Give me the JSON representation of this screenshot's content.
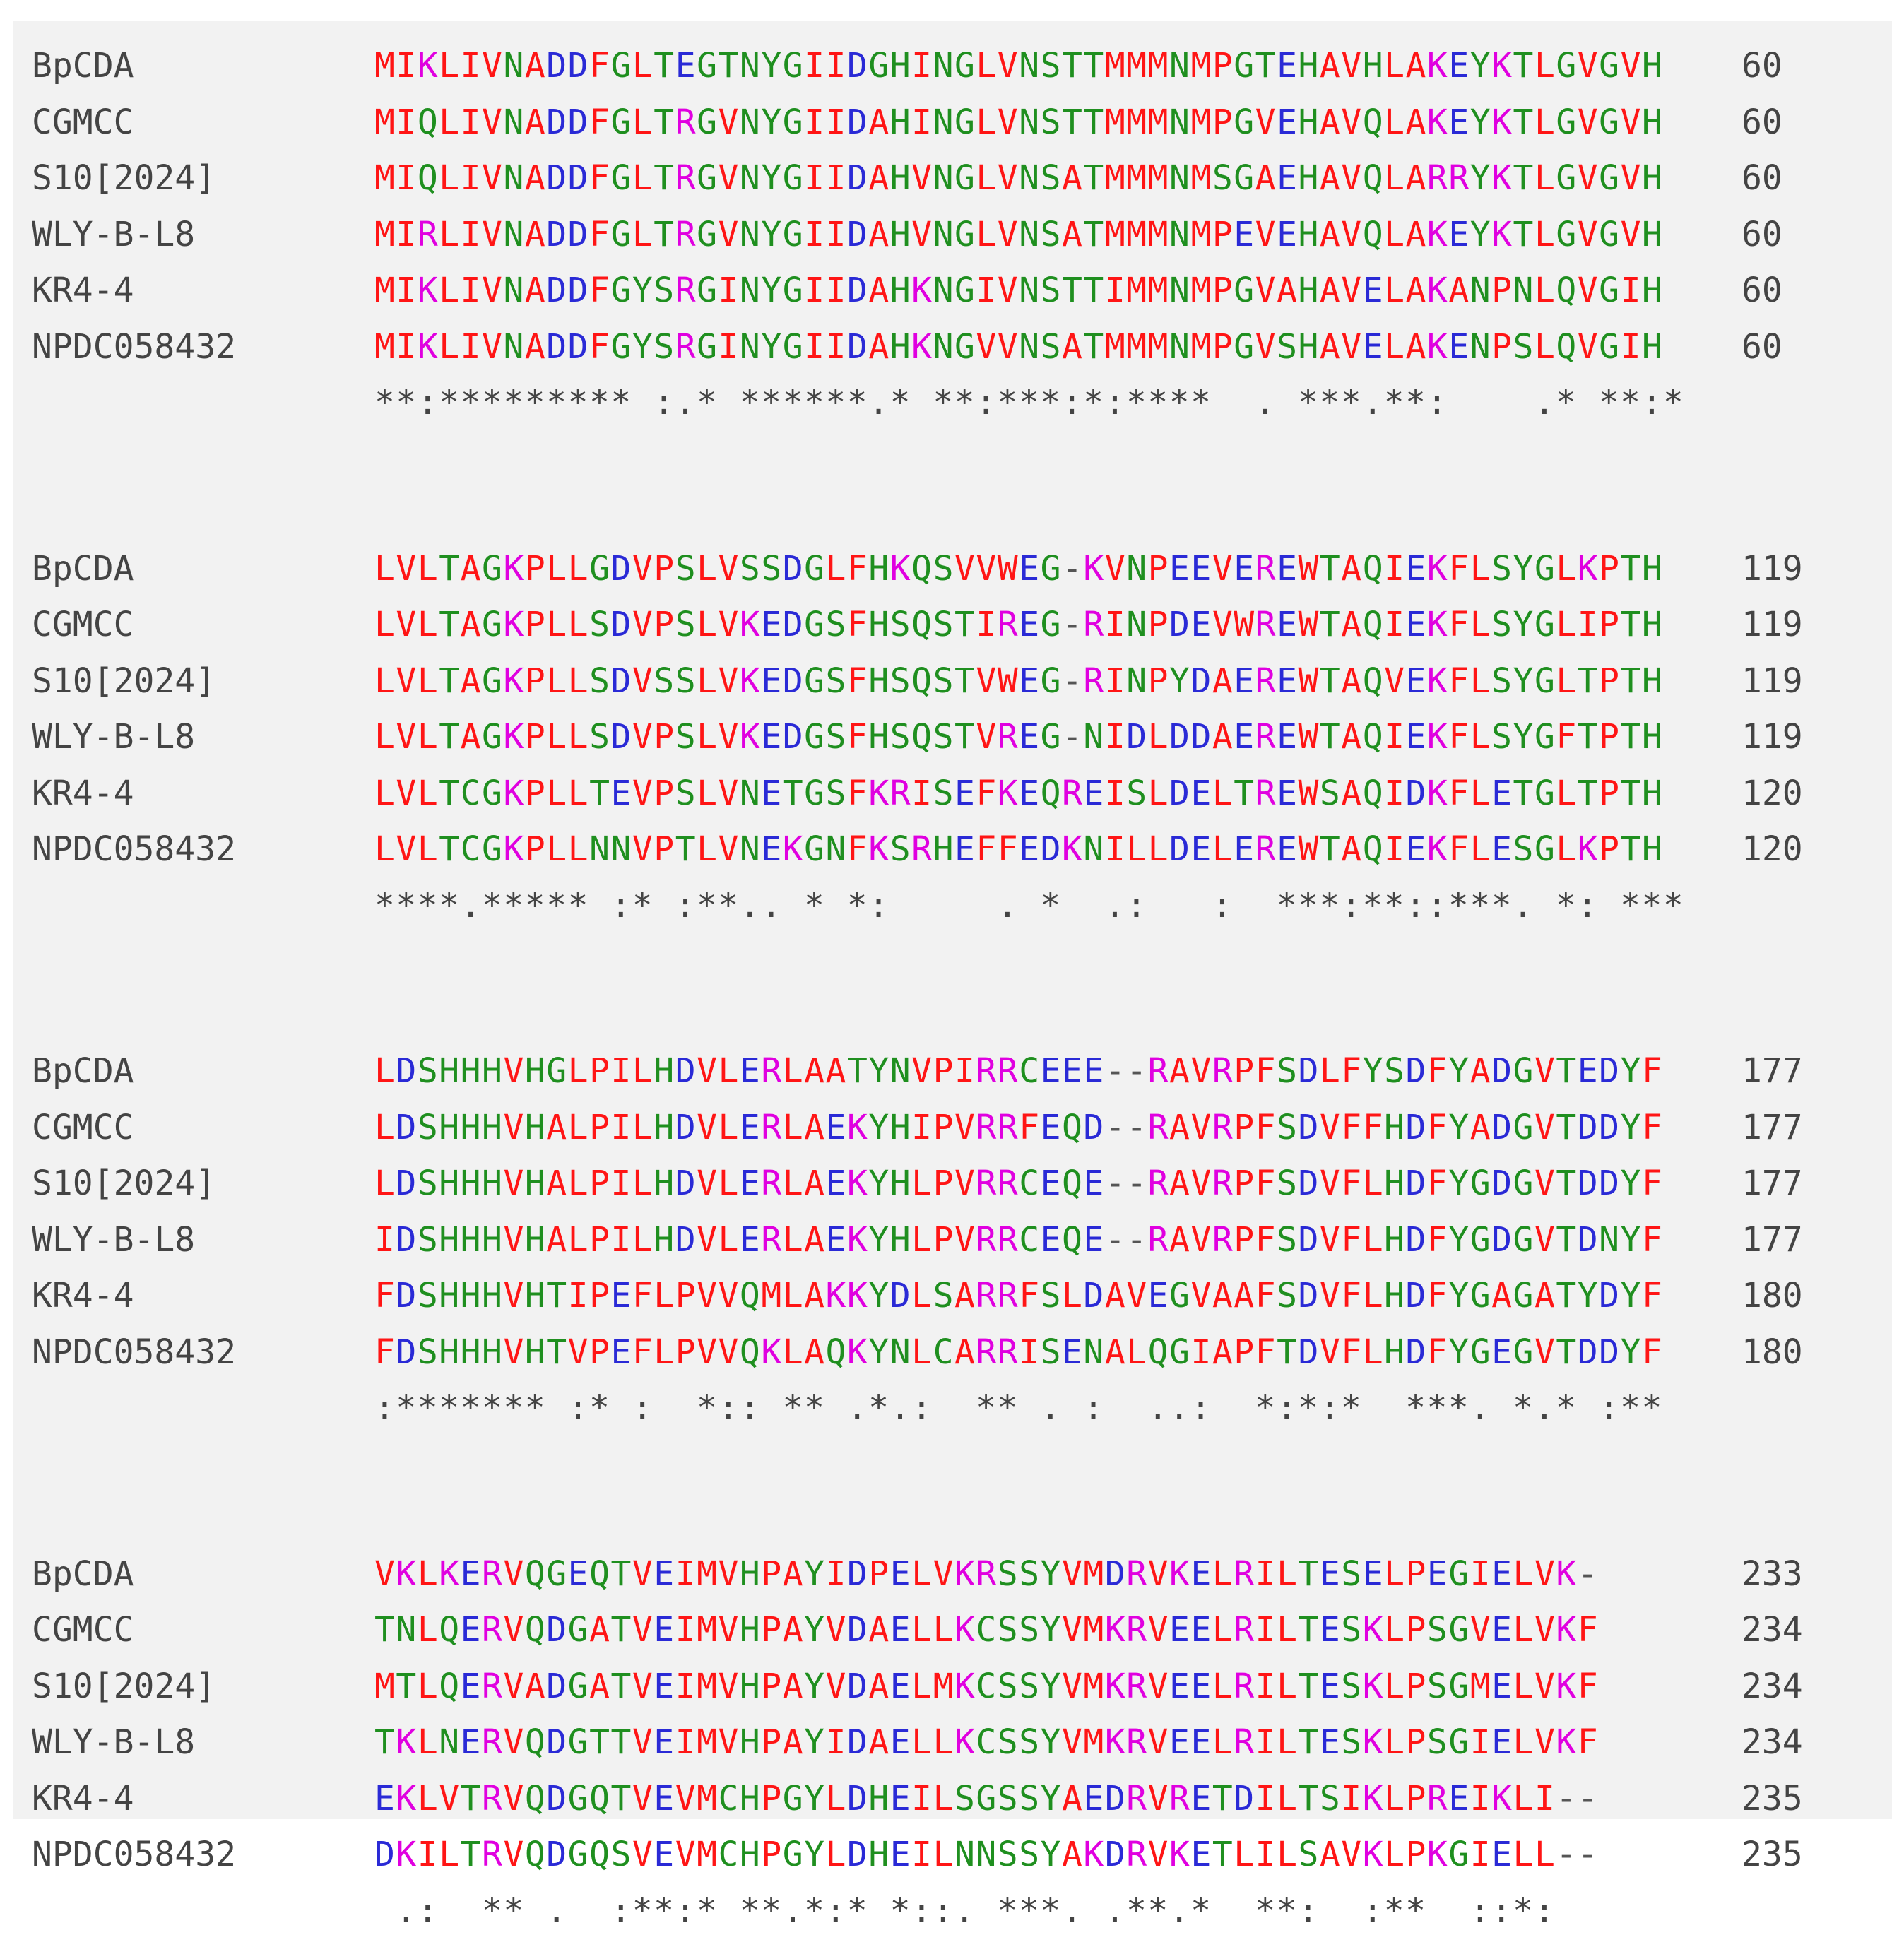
{
  "colors": {
    "hydrophobic": "#ff1515",
    "acidic": "#2a2ad6",
    "basic": "#e000e0",
    "polar": "#1f8f1f",
    "gap": "#555555",
    "background": "#f2f2f2"
  },
  "blocks": [
    {
      "rows": [
        {
          "name": "BpCDA",
          "seq": "MIKLIVNADDFGLTEGTNYGIIDGHINGLVNSTTMMMNMPGTEHAVHLAKEYKTLGVGVH",
          "num": "60"
        },
        {
          "name": "CGMCC",
          "seq": "MIQLIVNADDFGLTRGVNYGIIDAHINGLVNSTTMMMNMPGVEHAVQLAKEYKTLGVGVH",
          "num": "60"
        },
        {
          "name": "S10[2024]",
          "seq": "MIQLIVNADDFGLTRGVNYGIIDAHVNGLVNSATMMMNMSGAEHAVQLARRYKTLGVGVH",
          "num": "60"
        },
        {
          "name": "WLY-B-L8",
          "seq": "MIRLIVNADDFGLTRGVNYGIIDAHVNGLVNSATMMMNMPEVEHAVQLAKEYKTLGVGVH",
          "num": "60"
        },
        {
          "name": "KR4-4",
          "seq": "MIKLIVNADDFGYSRGINYGIIDAHKNGIVNSTTIMMNMPGVAHAVELAKANPNLQVGIH",
          "num": "60"
        },
        {
          "name": "NPDC058432",
          "seq": "MIKLIVNADDFGYSRGINYGIIDAHKNGVVNSATMMMNMPGVSHAVELAKENPSLQVGIH",
          "num": "60"
        }
      ],
      "consensus": "**:********* :.* ******.* **:***:*:****  . ***.**:    .* **:*"
    },
    {
      "rows": [
        {
          "name": "BpCDA",
          "seq": "LVLTAGKPLLGDVPSLVSSDGLFHKQSVVWEG-KVNPEEVEREWTAQIEKFLSYGLKPTH",
          "num": "119"
        },
        {
          "name": "CGMCC",
          "seq": "LVLTAGKPLLSDVPSLVKEDGSFHSQSTIREG-RINPDEVWREWTAQIEKFLSYGLIPTH",
          "num": "119"
        },
        {
          "name": "S10[2024]",
          "seq": "LVLTAGKPLLSDVSSLVKEDGSFHSQSTVWEG-RINPYDAEREWTAQVEKFLSYGLTPTH",
          "num": "119"
        },
        {
          "name": "WLY-B-L8",
          "seq": "LVLTAGKPLLSDVPSLVKEDGSFHSQSTVREG-NIDLDDAEREWTAQIEKFLSYGFTPTH",
          "num": "119"
        },
        {
          "name": "KR4-4",
          "seq": "LVLTCGKPLLTEVPSLVNETGSFKRISEFKEQREISLDELTREWSAQIDKFLETGLTPTH",
          "num": "120"
        },
        {
          "name": "NPDC058432",
          "seq": "LVLTCGKPLLNNVPTLVNEKGNFKSRHEFFEDKNILLDELEREWTAQIEKFLESGLKPTH",
          "num": "120"
        }
      ],
      "consensus": "****.***** :* :**.. * *:     . *  .:   :  ***:**::***. *: ***"
    },
    {
      "rows": [
        {
          "name": "BpCDA",
          "seq": "LDSHHHVHGLPILHDVLERLAATYNVPIRRCEEE--RAVRPFSDLFYSDFYADGVTEDYF",
          "num": "177"
        },
        {
          "name": "CGMCC",
          "seq": "LDSHHHVHALPILHDVLERLAEKYHIPVRRFEQD--RAVRPFSDVFFHDFYADGVTDDYF",
          "num": "177"
        },
        {
          "name": "S10[2024]",
          "seq": "LDSHHHVHALPILHDVLERLAEKYHLPVRRCEQE--RAVRPFSDVFLHDFYGDGVTDDYF",
          "num": "177"
        },
        {
          "name": "WLY-B-L8",
          "seq": "IDSHHHVHALPILHDVLERLAEKYHLPVRRCEQE--RAVRPFSDVFLHDFYGDGVTDNYF",
          "num": "177"
        },
        {
          "name": "KR4-4",
          "seq": "FDSHHHVHTIPEFLPVVQMLAKKYDLSARRFSLDAVEGVAAFSDVFLHDFYGAGATYDYF",
          "num": "180"
        },
        {
          "name": "NPDC058432",
          "seq": "FDSHHHVHTVPEFLPVVQKLAQKYNLCARRISENALQGIAPFTDVFLHDFYGEGVTDDYF",
          "num": "180"
        }
      ],
      "consensus": ":******* :* :  *:: ** .*.:  ** . :  ..:  *:*:*  ***. *.* :**"
    },
    {
      "rows": [
        {
          "name": "BpCDA",
          "seq": "VKLKERVQGEQTVEIMVHPAYIDPELVKRSSYVMDRVKELRILTESELPEGIELVK-",
          "num": "233"
        },
        {
          "name": "CGMCC",
          "seq": "TNLQERVQDGATVEIMVHPAYVDAELLKCSSYVMKRVEELRILTESKLPSGVELVKF",
          "num": "234"
        },
        {
          "name": "S10[2024]",
          "seq": "MTLQERVADGATVEIMVHPAYVDAELMKCSSYVMKRVEELRILTESKLPSGMELVKF",
          "num": "234"
        },
        {
          "name": "WLY-B-L8",
          "seq": "TKLNERVQDGTTVEIMVHPAYIDAELLKCSSYVMKRVEELRILTESKLPSGIELVKF",
          "num": "234"
        },
        {
          "name": "KR4-4",
          "seq": "EKLVTRVQDGQTVEVMCHPGYLDHEILSGSSYAEDRVRETDILTSIKLPREIKLI--",
          "num": "235"
        },
        {
          "name": "NPDC058432",
          "seq": "DKILTRVQDGQSVEVMCHPGYLDHEILNNSSYAKDRVKETLILSAVKLPKGIELL--",
          "num": "235"
        }
      ],
      "consensus": " .:  ** .  :**:* **.*:* *::. ***. .**.*  **:  :**  ::*:"
    }
  ]
}
